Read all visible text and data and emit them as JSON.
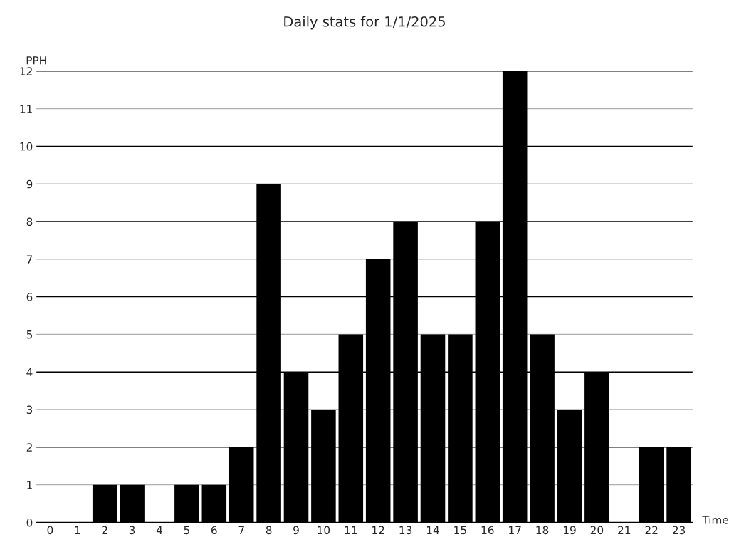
{
  "chart_data": {
    "type": "bar",
    "title": "Daily stats for 1/1/2025",
    "xlabel": "Time",
    "ylabel": "PPH",
    "categories": [
      "0",
      "1",
      "2",
      "3",
      "4",
      "5",
      "6",
      "7",
      "8",
      "9",
      "10",
      "11",
      "12",
      "13",
      "14",
      "15",
      "16",
      "17",
      "18",
      "19",
      "20",
      "21",
      "22",
      "23"
    ],
    "values": [
      0,
      0,
      1,
      1,
      0,
      1,
      1,
      2,
      9,
      4,
      3,
      5,
      7,
      8,
      5,
      5,
      8,
      12,
      5,
      3,
      4,
      0,
      2,
      2
    ],
    "color": "#000000",
    "ylim": [
      0,
      12
    ],
    "yticks": [
      0,
      1,
      2,
      3,
      4,
      5,
      6,
      7,
      8,
      9,
      10,
      11,
      12
    ],
    "grid": "y"
  }
}
